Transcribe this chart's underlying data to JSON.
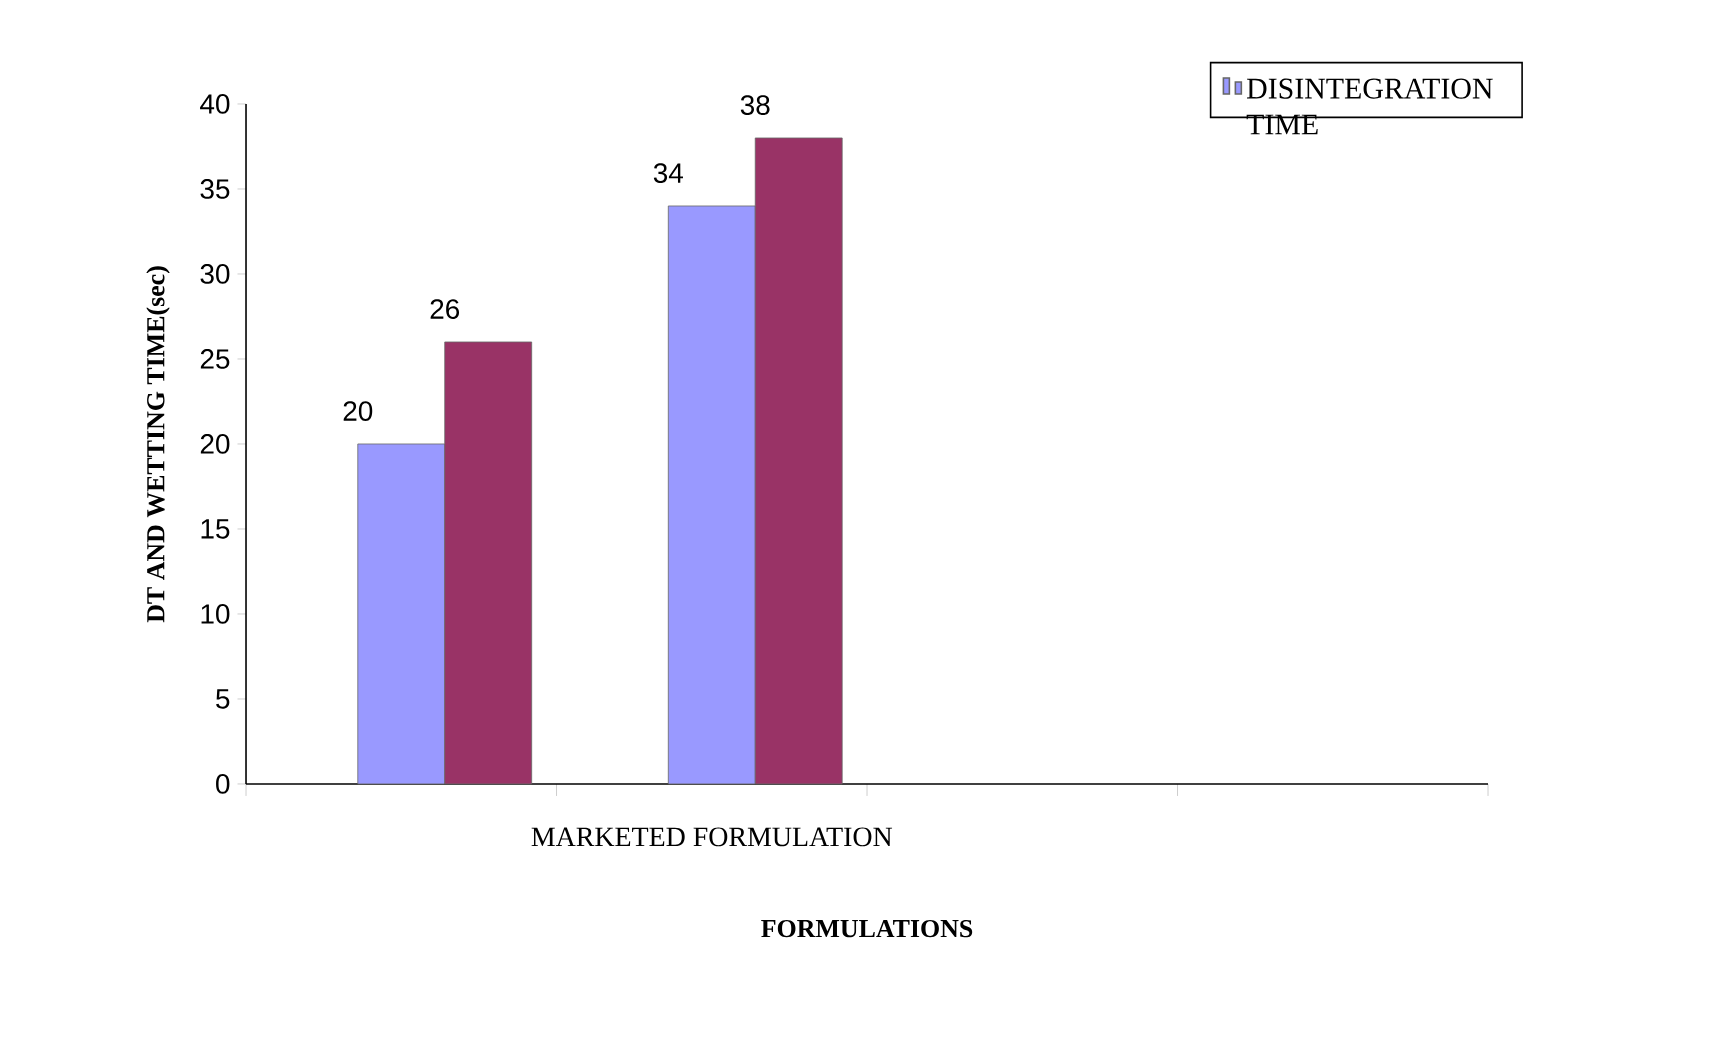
{
  "chart_data": {
    "type": "bar",
    "xlabel": "FORMULATIONS",
    "ylabel": "DT AND WETTING TIME(sec)",
    "categories": [
      null,
      "MARKETED FORMULATION",
      null,
      null
    ],
    "series": [
      {
        "name": "DISINTEGRATION TIME",
        "color": "#9999ff",
        "values": [
          20,
          34,
          null,
          null
        ]
      },
      {
        "color": "#993366",
        "values": [
          26,
          38,
          null,
          null
        ]
      }
    ],
    "ylim": [
      0,
      40
    ],
    "yticks": [
      0,
      5,
      10,
      15,
      20,
      25,
      30,
      35,
      40
    ],
    "data_labels": true,
    "legend": "top right"
  }
}
